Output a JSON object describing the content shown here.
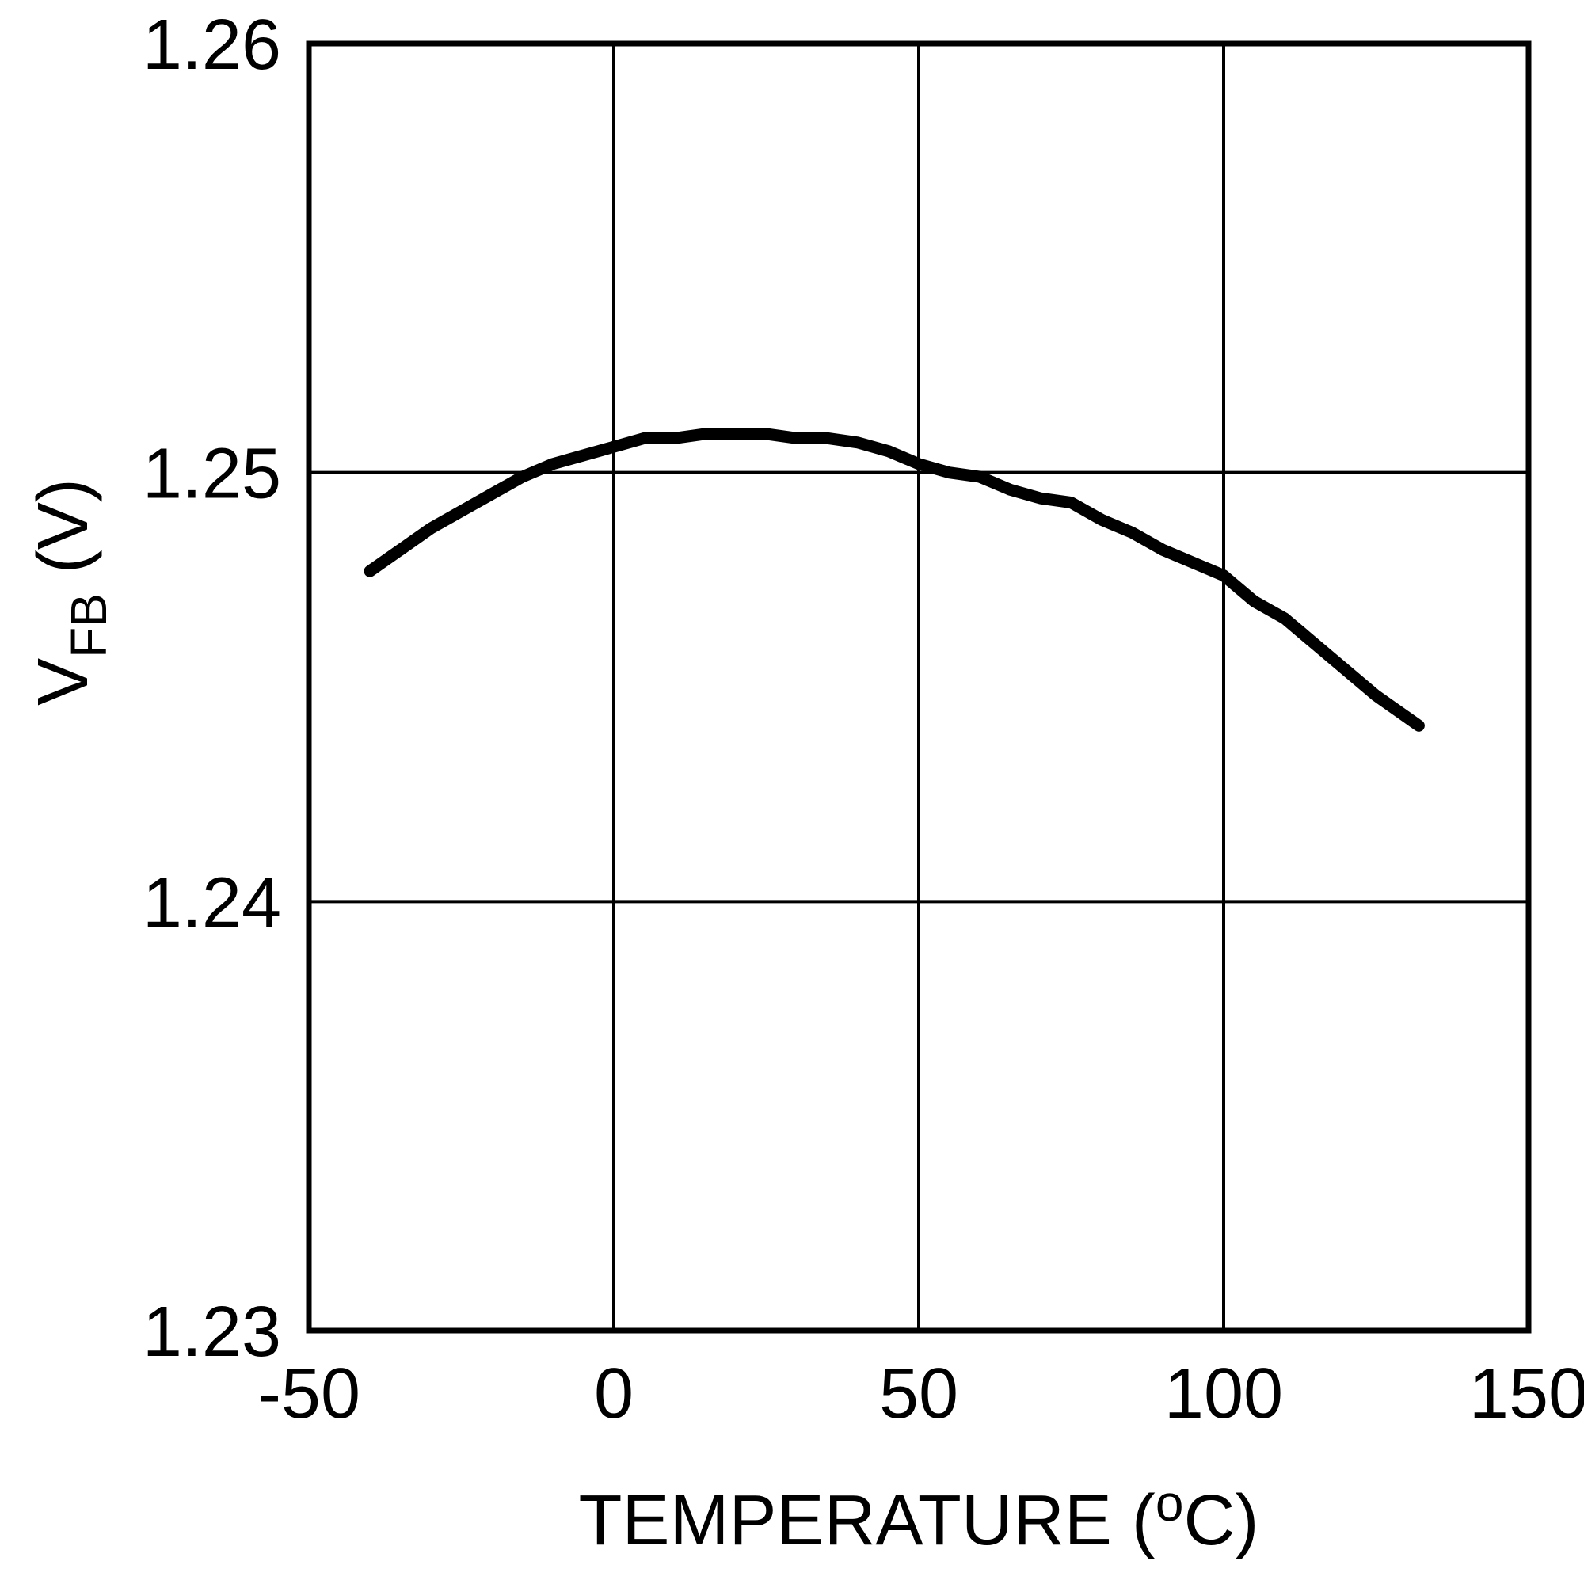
{
  "chart_data": {
    "type": "line",
    "title": "",
    "xlabel": "TEMPERATURE (°C)",
    "ylabel": "VFB (V)",
    "xlabel_parts": {
      "pre": "TEMPERATURE (",
      "sup": "o",
      "post": "C)"
    },
    "ylabel_parts": {
      "main": "V",
      "sub": "FB",
      "rest": " (V)"
    },
    "xlim": [
      -50,
      150
    ],
    "ylim": [
      1.23,
      1.26
    ],
    "grid": true,
    "legend": "none",
    "line_color": "#000000",
    "xticks": [
      {
        "v": -50,
        "label": "-50"
      },
      {
        "v": 0,
        "label": "0"
      },
      {
        "v": 50,
        "label": "50"
      },
      {
        "v": 100,
        "label": "100"
      },
      {
        "v": 150,
        "label": "150"
      }
    ],
    "yticks": [
      {
        "v": 1.23,
        "label": "1.23"
      },
      {
        "v": 1.24,
        "label": "1.24"
      },
      {
        "v": 1.25,
        "label": "1.25"
      },
      {
        "v": 1.26,
        "label": "1.26"
      }
    ],
    "series": [
      {
        "name": "VFB vs temperature",
        "points": [
          [
            -40,
            1.2477
          ],
          [
            -35,
            1.2482
          ],
          [
            -30,
            1.2487
          ],
          [
            -25,
            1.2491
          ],
          [
            -20,
            1.2495
          ],
          [
            -15,
            1.2499
          ],
          [
            -10,
            1.2502
          ],
          [
            -5,
            1.2504
          ],
          [
            0,
            1.2506
          ],
          [
            5,
            1.2508
          ],
          [
            10,
            1.2508
          ],
          [
            15,
            1.2509
          ],
          [
            20,
            1.2509
          ],
          [
            25,
            1.2509
          ],
          [
            30,
            1.2508
          ],
          [
            35,
            1.2508
          ],
          [
            40,
            1.2507
          ],
          [
            45,
            1.2505
          ],
          [
            50,
            1.2502
          ],
          [
            55,
            1.25
          ],
          [
            60,
            1.2499
          ],
          [
            65,
            1.2496
          ],
          [
            70,
            1.2494
          ],
          [
            75,
            1.2493
          ],
          [
            80,
            1.2489
          ],
          [
            85,
            1.2486
          ],
          [
            90,
            1.2482
          ],
          [
            95,
            1.2479
          ],
          [
            100,
            1.2476
          ],
          [
            105,
            1.247
          ],
          [
            110,
            1.2466
          ],
          [
            115,
            1.246
          ],
          [
            120,
            1.2454
          ],
          [
            125,
            1.2448
          ],
          [
            130,
            1.2443
          ],
          [
            132,
            1.2441
          ]
        ]
      }
    ]
  }
}
